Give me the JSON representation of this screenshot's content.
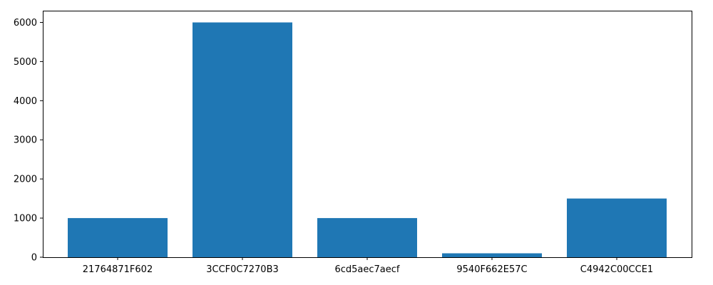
{
  "chart_data": {
    "type": "bar",
    "title": "",
    "xlabel": "",
    "ylabel": "",
    "categories": [
      "21764871F602",
      "3CCF0C7270B3",
      "6cd5aec7aecf",
      "9540F662E57C",
      "C4942C00CCE1"
    ],
    "values": [
      1000,
      6000,
      1000,
      100,
      1500
    ],
    "ylim": [
      0,
      6300
    ],
    "yticks": [
      0,
      1000,
      2000,
      3000,
      4000,
      5000,
      6000
    ],
    "grid": false,
    "legend": "none",
    "bar_color": "#1f77b4",
    "axis_color": "#000000"
  }
}
